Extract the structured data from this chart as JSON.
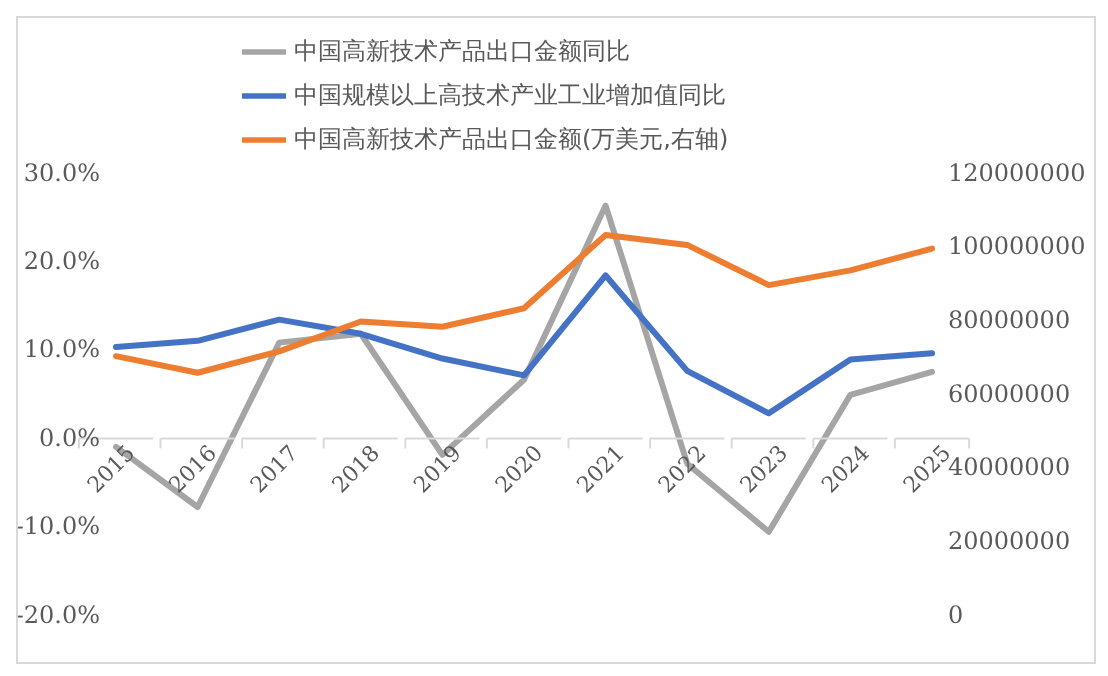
{
  "chart_data": {
    "type": "line",
    "categories": [
      "2015",
      "2016",
      "2017",
      "2018",
      "2019",
      "2020",
      "2021",
      "2022",
      "2023",
      "2024",
      "2025"
    ],
    "series": [
      {
        "name": "中国高新技术产品出口金额同比",
        "color": "#a5a5a5",
        "values": [
          -1.1,
          -7.9,
          10.7,
          11.7,
          -2.0,
          6.5,
          26.2,
          -3.0,
          -10.7,
          4.8,
          7.4
        ]
      },
      {
        "name": "中国规模以上高技术产业工业增加值同比",
        "color": "#4472c4",
        "values": [
          10.2,
          10.9,
          13.3,
          11.7,
          8.9,
          7.0,
          18.3,
          7.5,
          2.7,
          8.8,
          9.5
        ]
      },
      {
        "name": "中国高新技术产品出口金额(万美元,右轴)",
        "color": "#ed7d31",
        "axis": "y2",
        "values": [
          70000000,
          65500000,
          71300000,
          79400000,
          78000000,
          83000000,
          102900000,
          100200000,
          89300000,
          93300000,
          99200000
        ]
      }
    ],
    "ylim": [
      -20,
      30
    ],
    "yticks": [
      {
        "value": -20,
        "label": "-20.0%"
      },
      {
        "value": -10,
        "label": "-10.0%"
      },
      {
        "value": 0,
        "label": "0.0%"
      },
      {
        "value": 10,
        "label": "10.0%"
      },
      {
        "value": 20,
        "label": "20.0%"
      },
      {
        "value": 30,
        "label": "30.0%"
      }
    ],
    "y2lim": [
      0,
      120000000
    ],
    "y2ticks": [
      0,
      20000000,
      40000000,
      60000000,
      80000000,
      100000000,
      120000000
    ],
    "grid": false,
    "legend": "top",
    "marker": "none",
    "line_style": "solid"
  }
}
